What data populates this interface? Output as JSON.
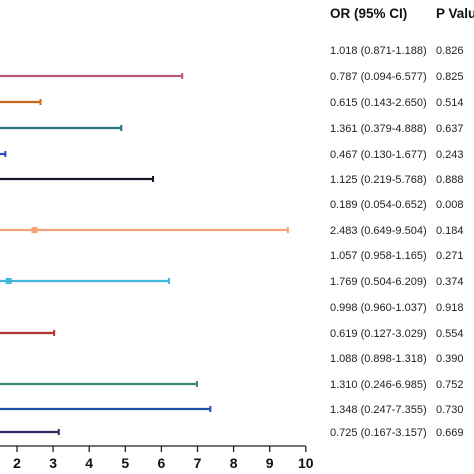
{
  "chart_data": {
    "type": "forest",
    "column_headers": {
      "or_ci": "OR (95% CI)",
      "p_value": "P Valu"
    },
    "x_ticks": [
      "2",
      "3",
      "4",
      "5",
      "6",
      "7",
      "8",
      "9",
      "10"
    ],
    "xlim": [
      1.5,
      10
    ],
    "rows": [
      {
        "or": 1.018,
        "lo": 0.871,
        "hi": 1.188,
        "text": "1.018 (0.871-1.188)",
        "p": "0.826",
        "color": null
      },
      {
        "or": 0.787,
        "lo": 0.094,
        "hi": 6.577,
        "text": "0.787 (0.094-6.577)",
        "p": "0.825",
        "color": "#b5577f"
      },
      {
        "or": 0.615,
        "lo": 0.143,
        "hi": 2.65,
        "text": "0.615 (0.143-2.650)",
        "p": "0.514",
        "color": "#c8661a"
      },
      {
        "or": 1.361,
        "lo": 0.379,
        "hi": 4.888,
        "text": "1.361 (0.379-4.888)",
        "p": "0.637",
        "color": "#2f6f7e"
      },
      {
        "or": 0.467,
        "lo": 0.13,
        "hi": 1.677,
        "text": "0.467 (0.130-1.677)",
        "p": "0.243",
        "color": "#2947c7"
      },
      {
        "or": 1.125,
        "lo": 0.219,
        "hi": 5.768,
        "text": "1.125 (0.219-5.768)",
        "p": "0.888",
        "color": "#141428"
      },
      {
        "or": 0.189,
        "lo": 0.054,
        "hi": 0.652,
        "text": "0.189 (0.054-0.652)",
        "p": "0.008",
        "color": null
      },
      {
        "or": 2.483,
        "lo": 0.649,
        "hi": 9.504,
        "text": "2.483 (0.649-9.504)",
        "p": "0.184",
        "color": "#f0a27a"
      },
      {
        "or": 1.057,
        "lo": 0.958,
        "hi": 1.165,
        "text": "1.057 (0.958-1.165)",
        "p": "0.271",
        "color": null
      },
      {
        "or": 1.769,
        "lo": 0.504,
        "hi": 6.209,
        "text": "1.769 (0.504-6.209)",
        "p": "0.374",
        "color": "#41b6de"
      },
      {
        "or": 0.998,
        "lo": 0.96,
        "hi": 1.037,
        "text": "0.998 (0.960-1.037)",
        "p": "0.918",
        "color": null
      },
      {
        "or": 0.619,
        "lo": 0.127,
        "hi": 3.029,
        "text": "0.619 (0.127-3.029)",
        "p": "0.554",
        "color": "#b83232"
      },
      {
        "or": 1.088,
        "lo": 0.898,
        "hi": 1.318,
        "text": "1.088 (0.898-1.318)",
        "p": "0.390",
        "color": null
      },
      {
        "or": 1.31,
        "lo": 0.246,
        "hi": 6.985,
        "text": "1.310 (0.246-6.985)",
        "p": "0.752",
        "color": "#3c8a6a"
      },
      {
        "or": 1.348,
        "lo": 0.247,
        "hi": 7.355,
        "text": "1.348 (0.247-7.355)",
        "p": "0.730",
        "color": "#1f4fa8"
      },
      {
        "or": 0.725,
        "lo": 0.167,
        "hi": 3.157,
        "text": "0.725 (0.167-3.157)",
        "p": "0.669",
        "color": "#2b2b63"
      }
    ]
  }
}
